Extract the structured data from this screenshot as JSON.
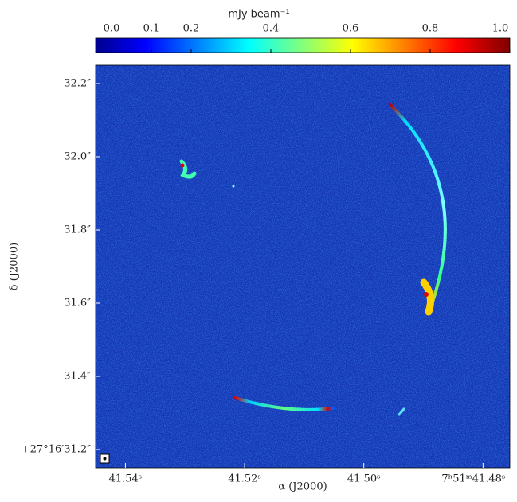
{
  "chart_data": {
    "type": "image",
    "colorbar": {
      "label": "mJy beam⁻¹",
      "lim": [
        -0.04,
        1.0
      ],
      "colormap": "jet",
      "ticks": [
        {
          "value": 0.0,
          "label": "0.0"
        },
        0.1,
        0.2,
        0.4,
        0.6,
        0.8,
        {
          "value": 1.0,
          "label": "1.0"
        }
      ]
    },
    "xlabel": "α (J2000)",
    "ylabel": "δ (J2000)",
    "xlim": [
      41.545,
      41.4755
    ],
    "xticks": [
      {
        "value": 41.54,
        "label": "41.54ˢ"
      },
      {
        "value": 41.52,
        "label": "41.52ˢ"
      },
      {
        "value": 41.5,
        "label": "41.50ˢ"
      },
      {
        "value": 41.48,
        "label": "7ʰ51ᵐ41.48ˢ"
      }
    ],
    "ylim": [
      31.15,
      32.25
    ],
    "yticks": [
      {
        "value": 31.2,
        "label": "+27°16′31.2″"
      },
      {
        "value": 31.4,
        "label": "31.4″"
      },
      {
        "value": 31.6,
        "label": "31.6″"
      },
      {
        "value": 31.8,
        "label": "31.8″"
      },
      {
        "value": 32.0,
        "label": "32.0″"
      },
      {
        "value": 32.2,
        "label": "32.2″"
      }
    ]
  }
}
